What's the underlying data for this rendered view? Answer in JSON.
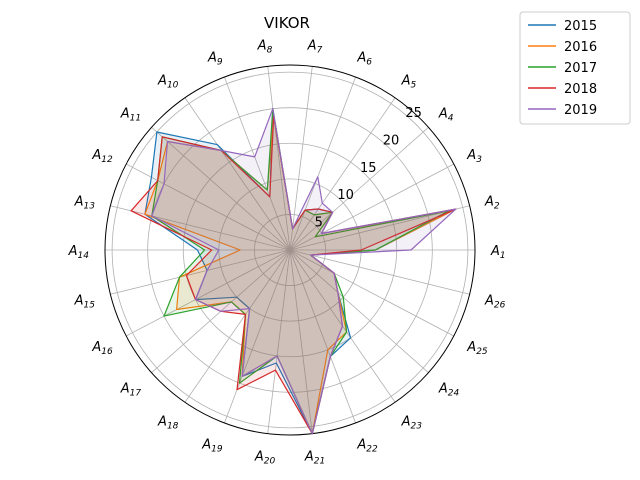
{
  "chart_data": {
    "type": "radar",
    "title": "VIKOR",
    "categories": [
      {
        "base": "A",
        "sub": "1"
      },
      {
        "base": "A",
        "sub": "2"
      },
      {
        "base": "A",
        "sub": "3"
      },
      {
        "base": "A",
        "sub": "4"
      },
      {
        "base": "A",
        "sub": "5"
      },
      {
        "base": "A",
        "sub": "6"
      },
      {
        "base": "A",
        "sub": "7"
      },
      {
        "base": "A",
        "sub": "8"
      },
      {
        "base": "A",
        "sub": "9"
      },
      {
        "base": "A",
        "sub": "10"
      },
      {
        "base": "A",
        "sub": "11"
      },
      {
        "base": "A",
        "sub": "12"
      },
      {
        "base": "A",
        "sub": "13"
      },
      {
        "base": "A",
        "sub": "14"
      },
      {
        "base": "A",
        "sub": "15"
      },
      {
        "base": "A",
        "sub": "16"
      },
      {
        "base": "A",
        "sub": "17"
      },
      {
        "base": "A",
        "sub": "18"
      },
      {
        "base": "A",
        "sub": "19"
      },
      {
        "base": "A",
        "sub": "20"
      },
      {
        "base": "A",
        "sub": "21"
      },
      {
        "base": "A",
        "sub": "22"
      },
      {
        "base": "A",
        "sub": "23"
      },
      {
        "base": "A",
        "sub": "24"
      },
      {
        "base": "A",
        "sub": "25"
      },
      {
        "base": "A",
        "sub": "26"
      }
    ],
    "radial_ticks": [
      5,
      10,
      15,
      20,
      25
    ],
    "rlim": [
      0,
      26
    ],
    "grid": true,
    "legend_position": "upper right, outside plot",
    "series": [
      {
        "name": "2015",
        "color": "#1f77b4",
        "values": [
          12,
          24,
          5,
          8,
          7,
          6,
          3,
          20,
          8,
          18,
          25,
          22,
          21,
          13,
          12,
          15,
          10,
          10,
          19,
          16,
          26,
          16,
          15,
          9,
          7,
          3
        ]
      },
      {
        "name": "2016",
        "color": "#ff7f0e",
        "values": [
          12,
          24,
          4,
          8,
          6,
          6,
          3,
          19,
          9,
          17,
          23,
          21,
          21,
          7,
          16,
          18,
          11,
          11,
          19,
          15,
          26,
          15,
          14,
          9,
          7,
          3
        ]
      },
      {
        "name": "2017",
        "color": "#2ca02c",
        "values": [
          12,
          23,
          4,
          8,
          6,
          6,
          3,
          20,
          9,
          17,
          24,
          21,
          20,
          12,
          16,
          20,
          11,
          11,
          20,
          15,
          26,
          16,
          14,
          10,
          7,
          3
        ]
      },
      {
        "name": "2018",
        "color": "#d62728",
        "values": [
          10,
          24,
          5,
          8,
          7,
          6,
          3,
          19,
          8,
          17,
          24,
          21,
          23,
          11,
          15,
          15,
          13,
          11,
          21,
          17,
          26,
          16,
          13,
          9,
          7,
          3
        ]
      },
      {
        "name": "2019",
        "color": "#9467bd",
        "values": [
          17,
          24,
          5,
          8,
          8,
          11,
          3,
          20,
          14,
          17,
          23,
          20,
          20,
          10,
          12,
          15,
          13,
          10,
          19,
          15,
          26,
          16,
          13,
          9,
          7,
          3
        ]
      }
    ]
  }
}
